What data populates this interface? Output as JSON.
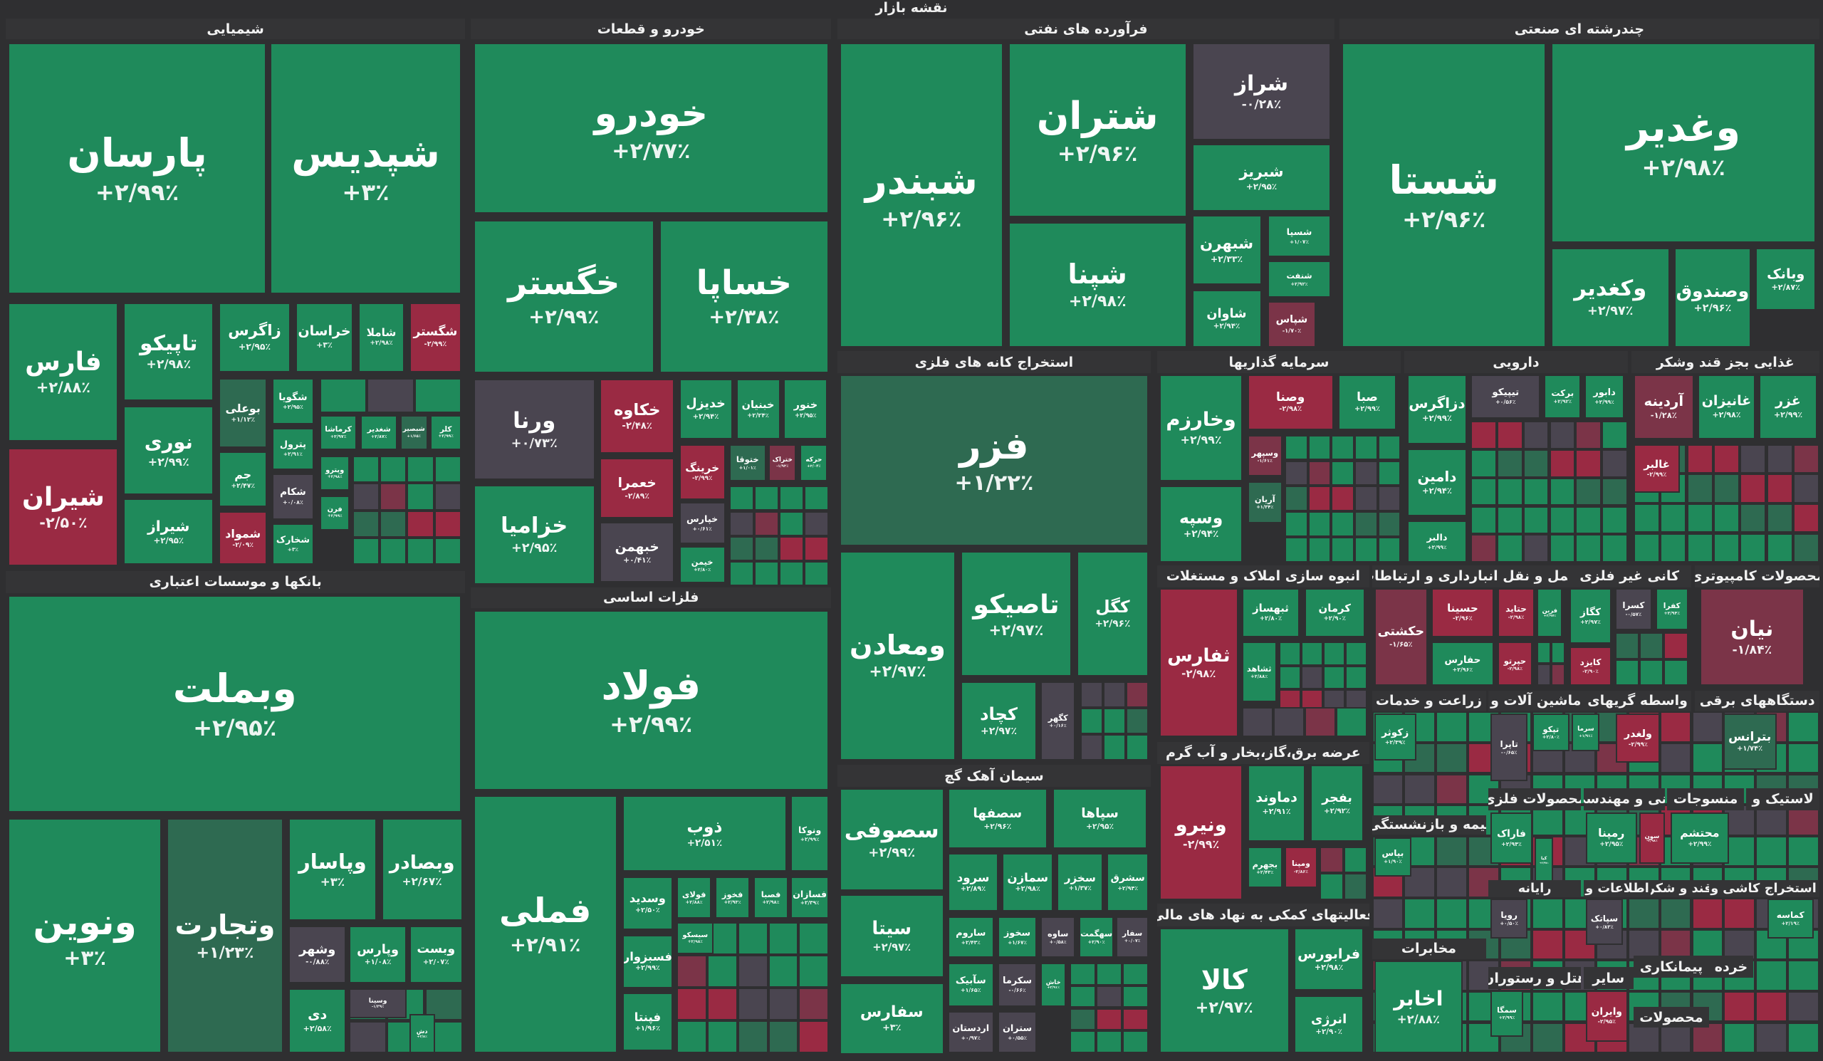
{
  "title": "نقشه بازار",
  "colors": {
    "positive": "#1f8a5b",
    "negative": "#9a2a43",
    "neutral": "#4a4550",
    "mild_positive": "#2e6a51",
    "mild_negative": "#7b3448",
    "background": "#2f2f31"
  },
  "sectors": [
    {
      "title": "شیمیایی",
      "tiles": [
        {
          "symbol": "پارسان",
          "change": "+۲/۹۹٪",
          "tone": "g"
        },
        {
          "symbol": "شپدیس",
          "change": "+۳٪",
          "tone": "g"
        },
        {
          "symbol": "فارس",
          "change": "+۲/۸۸٪",
          "tone": "g"
        },
        {
          "symbol": "شیران",
          "change": "-۲/۵۰٪",
          "tone": "r"
        },
        {
          "symbol": "تاپیکو",
          "change": "+۲/۹۸٪",
          "tone": "g"
        },
        {
          "symbol": "نوری",
          "change": "+۲/۹۹٪",
          "tone": "g"
        },
        {
          "symbol": "شیراز",
          "change": "+۲/۹۵٪",
          "tone": "g"
        },
        {
          "symbol": "زاگرس",
          "change": "+۲/۹۵٪",
          "tone": "g"
        },
        {
          "symbol": "خراسان",
          "change": "+۳٪",
          "tone": "g"
        },
        {
          "symbol": "شاملا",
          "change": "+۲/۹۸٪",
          "tone": "g"
        },
        {
          "symbol": "شگستر",
          "change": "-۲/۹۹٪",
          "tone": "r"
        },
        {
          "symbol": "بوعلی",
          "change": "+۱/۱۲٪",
          "tone": "m"
        },
        {
          "symbol": "جم",
          "change": "+۲/۴۷٪",
          "tone": "g"
        },
        {
          "symbol": "شمواد",
          "change": "-۲/۰۹٪",
          "tone": "r"
        },
        {
          "symbol": "شگویا",
          "change": "+۲/۹۵٪",
          "tone": "g"
        },
        {
          "symbol": "پترول",
          "change": "+۲/۹۱٪",
          "tone": "g"
        },
        {
          "symbol": "شکام",
          "change": "+۰/۰۸٪",
          "tone": "n"
        },
        {
          "symbol": "شخارک",
          "change": "+۳٪",
          "tone": "g"
        },
        {
          "symbol": "کرماشا",
          "change": "+۲/۹۷٪",
          "tone": "g"
        },
        {
          "symbol": "شغدیر",
          "change": "+۲/۸۷٪",
          "tone": "g"
        },
        {
          "symbol": "شبصیر",
          "change": "+۱/۶۵٪",
          "tone": "m"
        },
        {
          "symbol": "کلر",
          "change": "+۲/۹۹٪",
          "tone": "g"
        },
        {
          "symbol": "وپترو",
          "change": "+۲/۹۸٪",
          "tone": "g"
        },
        {
          "symbol": "فرن",
          "change": "+۲/۹۹٪",
          "tone": "g"
        }
      ]
    },
    {
      "title": "بانکها و موسسات اعتباری",
      "tiles": [
        {
          "symbol": "وبملت",
          "change": "+۲/۹۵٪",
          "tone": "g"
        },
        {
          "symbol": "ونوین",
          "change": "+۳٪",
          "tone": "g"
        },
        {
          "symbol": "وتجارت",
          "change": "+۱/۲۳٪",
          "tone": "m"
        },
        {
          "symbol": "وپاسار",
          "change": "+۳٪",
          "tone": "g"
        },
        {
          "symbol": "وبصادر",
          "change": "+۲/۶۷٪",
          "tone": "g"
        },
        {
          "symbol": "وشهر",
          "change": "-۰/۸۸٪",
          "tone": "n"
        },
        {
          "symbol": "وپارس",
          "change": "+۱/۰۸٪",
          "tone": "g"
        },
        {
          "symbol": "وبست",
          "change": "+۲/۰۷٪",
          "tone": "g"
        },
        {
          "symbol": "دی",
          "change": "+۲/۵۸٪",
          "tone": "g"
        },
        {
          "symbol": "وسینا",
          "change": "-۱/۳۹٪",
          "tone": "n"
        },
        {
          "symbol": "دش",
          "change": "+۲/۸٪",
          "tone": "g"
        }
      ]
    },
    {
      "title": "خودرو و قطعات",
      "tiles": [
        {
          "symbol": "خودرو",
          "change": "+۲/۷۷٪",
          "tone": "g"
        },
        {
          "symbol": "خگستر",
          "change": "+۲/۹۹٪",
          "tone": "g"
        },
        {
          "symbol": "خساپا",
          "change": "+۲/۳۸٪",
          "tone": "g"
        },
        {
          "symbol": "ورنا",
          "change": "+۰/۷۳٪",
          "tone": "n"
        },
        {
          "symbol": "خزامیا",
          "change": "+۲/۹۵٪",
          "tone": "g"
        },
        {
          "symbol": "خکاوه",
          "change": "-۲/۴۸٪",
          "tone": "r"
        },
        {
          "symbol": "خعمرا",
          "change": "-۲/۸۹٪",
          "tone": "r"
        },
        {
          "symbol": "خبهمن",
          "change": "+۰/۴۱٪",
          "tone": "n"
        },
        {
          "symbol": "خدیزل",
          "change": "+۲/۹۴٪",
          "tone": "g"
        },
        {
          "symbol": "خبنیان",
          "change": "+۲/۲۴٪",
          "tone": "g"
        },
        {
          "symbol": "خنور",
          "change": "+۲/۹۵٪",
          "tone": "g"
        },
        {
          "symbol": "خرینگ",
          "change": "-۲/۹۹٪",
          "tone": "r"
        },
        {
          "symbol": "ختوقا",
          "change": "+۱/۰۱٪",
          "tone": "m"
        },
        {
          "symbol": "ختراک",
          "change": "-۱/۹۳٪",
          "tone": "q"
        },
        {
          "symbol": "حرکه",
          "change": "+۲/۰۴٪",
          "tone": "g"
        },
        {
          "symbol": "خپارس",
          "change": "+۰/۶۱٪",
          "tone": "n"
        },
        {
          "symbol": "خیمن",
          "change": "+۲/۸۰٪",
          "tone": "g"
        }
      ]
    },
    {
      "title": "فلزات اساسی",
      "tiles": [
        {
          "symbol": "فولاد",
          "change": "+۲/۹۹٪",
          "tone": "g"
        },
        {
          "symbol": "فملی",
          "change": "+۲/۹۱٪",
          "tone": "g"
        },
        {
          "symbol": "ذوب",
          "change": "+۲/۵۱٪",
          "tone": "g"
        },
        {
          "symbol": "ونوکا",
          "change": "+۲/۹۹٪",
          "tone": "g"
        },
        {
          "symbol": "فسازان",
          "change": "+۲/۳۹٪",
          "tone": "g"
        },
        {
          "symbol": "وسدید",
          "change": "+۲/۵۰٪",
          "tone": "g"
        },
        {
          "symbol": "فولای",
          "change": "+۲/۸۸٪",
          "tone": "g"
        },
        {
          "symbol": "فخوز",
          "change": "+۲/۹۳٪",
          "tone": "g"
        },
        {
          "symbol": "فصبا",
          "change": "+۲/۹۸٪",
          "tone": "g"
        },
        {
          "symbol": "سیسکو",
          "change": "+۲/۹۸٪",
          "tone": "g"
        },
        {
          "symbol": "فسبزوار",
          "change": "+۲/۹۹٪",
          "tone": "g"
        },
        {
          "symbol": "فپنتا",
          "change": "+۱/۹۶٪",
          "tone": "g"
        }
      ]
    },
    {
      "title": "فرآورده های نفتی",
      "tiles": [
        {
          "symbol": "شبندر",
          "change": "+۲/۹۶٪",
          "tone": "g"
        },
        {
          "symbol": "شتران",
          "change": "+۲/۹۶٪",
          "tone": "g"
        },
        {
          "symbol": "شپنا",
          "change": "+۲/۹۸٪",
          "tone": "g"
        },
        {
          "symbol": "شراز",
          "change": "-۰/۲۸٪",
          "tone": "n"
        },
        {
          "symbol": "شبریز",
          "change": "+۲/۹۵٪",
          "tone": "g"
        },
        {
          "symbol": "شبهرن",
          "change": "+۲/۳۳٪",
          "tone": "g"
        },
        {
          "symbol": "شاوان",
          "change": "+۲/۹۴٪",
          "tone": "g"
        },
        {
          "symbol": "شسپا",
          "change": "+۱/۰۷٪",
          "tone": "g"
        },
        {
          "symbol": "شنفت",
          "change": "+۲/۹۲٪",
          "tone": "g"
        },
        {
          "symbol": "شپاس",
          "change": "-۱/۷۰٪",
          "tone": "q"
        }
      ]
    },
    {
      "title": "چندرشته ای صنعتی",
      "tiles": [
        {
          "symbol": "شستا",
          "change": "+۲/۹۶٪",
          "tone": "g"
        },
        {
          "symbol": "وغدیر",
          "change": "+۲/۹۸٪",
          "tone": "g"
        },
        {
          "symbol": "وکغدیر",
          "change": "+۲/۹۷٪",
          "tone": "g"
        },
        {
          "symbol": "وصندوق",
          "change": "+۲/۹۶٪",
          "tone": "g"
        },
        {
          "symbol": "وبانک",
          "change": "+۲/۸۷٪",
          "tone": "g"
        }
      ]
    },
    {
      "title": "استخراج کانه های فلزی",
      "tiles": [
        {
          "symbol": "فزر",
          "change": "+۱/۲۲٪",
          "tone": "m"
        },
        {
          "symbol": "ومعادن",
          "change": "+۲/۹۷٪",
          "tone": "g"
        },
        {
          "symbol": "تاصیکو",
          "change": "+۲/۹۷٪",
          "tone": "g"
        },
        {
          "symbol": "کگل",
          "change": "+۲/۹۶٪",
          "tone": "g"
        },
        {
          "symbol": "کچاد",
          "change": "+۲/۹۷٪",
          "tone": "g"
        },
        {
          "symbol": "کگهر",
          "change": "+۰/۱۶٪",
          "tone": "n"
        }
      ]
    },
    {
      "title": "سیمان آهک گچ",
      "tiles": [
        {
          "symbol": "سصوفی",
          "change": "+۲/۹۹٪",
          "tone": "g"
        },
        {
          "symbol": "سیتا",
          "change": "+۲/۹۷٪",
          "tone": "g"
        },
        {
          "symbol": "سفارس",
          "change": "+۳٪",
          "tone": "g"
        },
        {
          "symbol": "سصفها",
          "change": "+۲/۹۶٪",
          "tone": "g"
        },
        {
          "symbol": "سپاها",
          "change": "+۲/۹۵٪",
          "tone": "g"
        },
        {
          "symbol": "سرود",
          "change": "+۲/۸۹٪",
          "tone": "g"
        },
        {
          "symbol": "سمازن",
          "change": "+۲/۹۸٪",
          "tone": "g"
        },
        {
          "symbol": "سخزر",
          "change": "+۱/۳۷٪",
          "tone": "g"
        },
        {
          "symbol": "سشرق",
          "change": "+۲/۹۴٪",
          "tone": "g"
        },
        {
          "symbol": "ساروم",
          "change": "+۲/۴۳٪",
          "tone": "g"
        },
        {
          "symbol": "سخوز",
          "change": "+۱/۶۷٪",
          "tone": "g"
        },
        {
          "symbol": "ساوه",
          "change": "+۰/۵۸٪",
          "tone": "n"
        },
        {
          "symbol": "سهگمت",
          "change": "+۲/۹۰٪",
          "tone": "g"
        },
        {
          "symbol": "سفار",
          "change": "+۰/۰۷٪",
          "tone": "n"
        },
        {
          "symbol": "سآبیک",
          "change": "+۱/۶۵٪",
          "tone": "g"
        },
        {
          "symbol": "سکرما",
          "change": "-۰/۶۶٪",
          "tone": "n"
        },
        {
          "symbol": "خاش",
          "change": "+۲/۹۱٪",
          "tone": "g"
        },
        {
          "symbol": "اردستان",
          "change": "+۰/۹۷٪",
          "tone": "n"
        },
        {
          "symbol": "ستران",
          "change": "+۰/۵۵٪",
          "tone": "n"
        }
      ]
    },
    {
      "title": "سرمایه گذاریها",
      "tiles": [
        {
          "symbol": "وخارزم",
          "change": "+۲/۹۹٪",
          "tone": "g"
        },
        {
          "symbol": "وسپه",
          "change": "+۲/۹۴٪",
          "tone": "g"
        },
        {
          "symbol": "وصنا",
          "change": "-۲/۹۸٪",
          "tone": "r"
        },
        {
          "symbol": "صبا",
          "change": "+۲/۹۹٪",
          "tone": "g"
        },
        {
          "symbol": "وسپهر",
          "change": "-۱/۶۱٪",
          "tone": "q"
        },
        {
          "symbol": "آریان",
          "change": "+۱/۳۴٪",
          "tone": "m"
        }
      ]
    },
    {
      "title": "دارویی",
      "tiles": [
        {
          "symbol": "دزاگرس",
          "change": "+۲/۹۹٪",
          "tone": "g"
        },
        {
          "symbol": "تیپیکو",
          "change": "+۰/۵۶٪",
          "tone": "n"
        },
        {
          "symbol": "برکت",
          "change": "+۲/۹۲٪",
          "tone": "g"
        },
        {
          "symbol": "دابور",
          "change": "+۲/۹۹٪",
          "tone": "g"
        },
        {
          "symbol": "دامین",
          "change": "+۲/۹۴٪",
          "tone": "g"
        },
        {
          "symbol": "دالبر",
          "change": "+۲/۹۹٪",
          "tone": "g"
        }
      ]
    },
    {
      "title": "غذایی بجز قند وشکر",
      "tiles": [
        {
          "symbol": "آردینه",
          "change": "-۱/۲۸٪",
          "tone": "q"
        },
        {
          "symbol": "غانیزان",
          "change": "+۲/۹۸٪",
          "tone": "g"
        },
        {
          "symbol": "غزر",
          "change": "+۲/۹۹٪",
          "tone": "g"
        },
        {
          "symbol": "غالبر",
          "change": "-۲/۹۹٪",
          "tone": "r"
        }
      ]
    },
    {
      "title": "انبوه سازی املاک و مستغلات",
      "tiles": [
        {
          "symbol": "ثفارس",
          "change": "-۲/۹۸٪",
          "tone": "r"
        },
        {
          "symbol": "ثبهساز",
          "change": "+۲/۸۰٪",
          "tone": "g"
        },
        {
          "symbol": "کرمان",
          "change": "+۲/۹۰٪",
          "tone": "g"
        },
        {
          "symbol": "ثشاهد",
          "change": "+۲/۸۸٪",
          "tone": "g"
        }
      ]
    },
    {
      "title": "حمل و نقل انبارداری و ارتباطات",
      "tiles": [
        {
          "symbol": "حکشتی",
          "change": "-۱/۶۵٪",
          "tone": "q"
        },
        {
          "symbol": "حسینا",
          "change": "-۲/۹۶٪",
          "tone": "r"
        },
        {
          "symbol": "حتاید",
          "change": "-۲/۹۸٪",
          "tone": "r"
        },
        {
          "symbol": "فرین",
          "change": "+۲/۹۷٪",
          "tone": "g"
        },
        {
          "symbol": "حفارس",
          "change": "+۲/۹۶٪",
          "tone": "g"
        },
        {
          "symbol": "حپرتو",
          "change": "-۲/۹۸٪",
          "tone": "r"
        }
      ]
    },
    {
      "title": "کانی غیر فلزی",
      "tiles": [
        {
          "symbol": "کگاز",
          "change": "+۲/۹۷٪",
          "tone": "g"
        },
        {
          "symbol": "کسرا",
          "change": "-۰/۵۷٪",
          "tone": "n"
        },
        {
          "symbol": "کفرا",
          "change": "+۲/۹۴٪",
          "tone": "g"
        },
        {
          "symbol": "کایزد",
          "change": "-۲/۹۰٪",
          "tone": "r"
        }
      ]
    },
    {
      "title": "محصولات کامپیوتری",
      "tiles": [
        {
          "symbol": "نیان",
          "change": "-۱/۸۴٪",
          "tone": "q"
        }
      ]
    },
    {
      "title": "زراعت و خدمات",
      "tiles": [
        {
          "symbol": "زکوثر",
          "change": "+۲/۳۹٪",
          "tone": "g"
        }
      ]
    },
    {
      "title": "ماشین آلات و",
      "tiles": [
        {
          "symbol": "تاپرا",
          "change": "-۰/۶۵٪",
          "tone": "n"
        },
        {
          "symbol": "تپکو",
          "change": "+۲/۸۰٪",
          "tone": "g"
        },
        {
          "symbol": "سرما",
          "change": "+۱/۹۱٪",
          "tone": "g"
        }
      ]
    },
    {
      "title": "واسطه گریهای",
      "tiles": [
        {
          "symbol": "ولغدر",
          "change": "-۲/۹۹٪",
          "tone": "r"
        }
      ]
    },
    {
      "title": "دستگاههای برقی",
      "tiles": [
        {
          "symbol": "بترانس",
          "change": "+۱/۷۴٪",
          "tone": "m"
        }
      ]
    },
    {
      "title": "عرضه برق،گاز،بخار و آب گرم",
      "tiles": [
        {
          "symbol": "ونیرو",
          "change": "-۲/۹۹٪",
          "tone": "r"
        },
        {
          "symbol": "دماوند",
          "change": "+۲/۹۱٪",
          "tone": "g"
        },
        {
          "symbol": "بفجر",
          "change": "+۲/۹۲٪",
          "tone": "g"
        },
        {
          "symbol": "بجهرم",
          "change": "+۲/۴۳٪",
          "tone": "g"
        },
        {
          "symbol": "ومپنا",
          "change": "-۲/۸۶٪",
          "tone": "r"
        }
      ]
    },
    {
      "title": "بیمه و بازنشستگی",
      "tiles": [
        {
          "symbol": "بپاس",
          "change": "+۱/۹۰٪",
          "tone": "g"
        }
      ]
    },
    {
      "title": "محصولات فلزی",
      "tiles": [
        {
          "symbol": "فاراک",
          "change": "+۲/۹۴٪",
          "tone": "g"
        },
        {
          "symbol": "کیا",
          "change": "+۲/۹۷٪",
          "tone": "g"
        }
      ]
    },
    {
      "title": "فنی و مهندسی",
      "tiles": [
        {
          "symbol": "رمپنا",
          "change": "+۲/۹۵٪",
          "tone": "g"
        },
        {
          "symbol": "سون",
          "change": "-۲/۹۸٪",
          "tone": "r"
        }
      ]
    },
    {
      "title": "منسوجات",
      "tiles": [
        {
          "symbol": "محتشم",
          "change": "+۲/۹۹٪",
          "tone": "g"
        }
      ]
    },
    {
      "title": "لاستیک و",
      "tiles": []
    },
    {
      "title": "رایانه",
      "tiles": [
        {
          "symbol": "رویا",
          "change": "+۰/۵۰٪",
          "tone": "n"
        }
      ]
    },
    {
      "title": "اطلاعات و",
      "tiles": [
        {
          "symbol": "سپاتک",
          "change": "+۰/۸۳٪",
          "tone": "n"
        }
      ]
    },
    {
      "title": "قند و شکر",
      "tiles": []
    },
    {
      "title": "کاشی و",
      "tiles": []
    },
    {
      "title": "استخراج",
      "tiles": [
        {
          "symbol": "کماسه",
          "change": "+۲/۱۹٪",
          "tone": "g"
        }
      ]
    },
    {
      "title": "فعالیتهای کمکی به نهاد های مالی",
      "tiles": [
        {
          "symbol": "کالا",
          "change": "+۲/۹۷٪",
          "tone": "g"
        },
        {
          "symbol": "فرابورس",
          "change": "+۲/۹۸٪",
          "tone": "g"
        },
        {
          "symbol": "انرژی",
          "change": "+۲/۹۰٪",
          "tone": "g"
        }
      ]
    },
    {
      "title": "مخابرات",
      "tiles": [
        {
          "symbol": "اخابر",
          "change": "+۲/۸۸٪",
          "tone": "g"
        }
      ]
    },
    {
      "title": "هتل و رستوران",
      "tiles": [
        {
          "symbol": "سمگا",
          "change": "+۲/۹۹٪",
          "tone": "g"
        }
      ]
    },
    {
      "title": "سایر",
      "tiles": [
        {
          "symbol": "وایران",
          "change": "-۲/۹۵٪",
          "tone": "r"
        }
      ]
    },
    {
      "title": "پیمانکاری",
      "tiles": []
    },
    {
      "title": "خرده",
      "tiles": []
    },
    {
      "title": "محصولات",
      "tiles": []
    }
  ]
}
